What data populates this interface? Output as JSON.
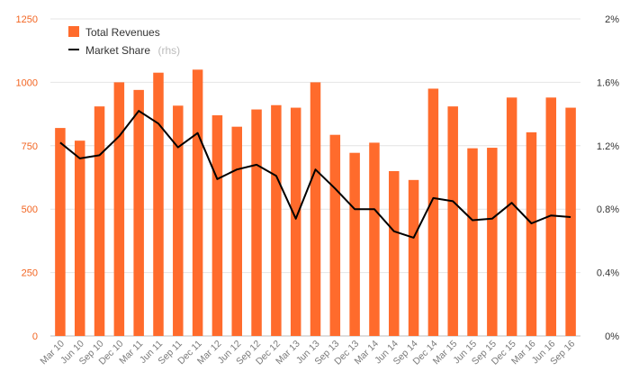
{
  "chart_data": {
    "type": "bar",
    "categories": [
      "Mar 10",
      "Jun 10",
      "Sep 10",
      "Dec 10",
      "Mar 11",
      "Jun 11",
      "Sep 11",
      "Dec 11",
      "Mar 12",
      "Jun 12",
      "Sep 12",
      "Dec 12",
      "Mar 13",
      "Jun 13",
      "Sep 13",
      "Dec 13",
      "Mar 14",
      "Jun 14",
      "Sep 14",
      "Dec 14",
      "Mar 15",
      "Jun 15",
      "Sep 15",
      "Dec 15",
      "Mar 16",
      "Jun 16",
      "Sep 16"
    ],
    "series": [
      {
        "name": "Total Revenues",
        "type": "bar",
        "axis": "left",
        "color": "#ff6b2c",
        "values": [
          820,
          770,
          905,
          1000,
          970,
          1038,
          908,
          1050,
          870,
          825,
          893,
          910,
          900,
          1000,
          793,
          722,
          762,
          650,
          615,
          975,
          905,
          740,
          742,
          940,
          803,
          940,
          900
        ]
      },
      {
        "name": "Market Share",
        "name_suffix": "(rhs)",
        "type": "line",
        "axis": "right",
        "color": "#000000",
        "values": [
          1.22,
          1.12,
          1.14,
          1.26,
          1.42,
          1.34,
          1.19,
          1.28,
          0.99,
          1.05,
          1.08,
          1.01,
          0.74,
          1.05,
          0.93,
          0.8,
          0.8,
          0.66,
          0.62,
          0.87,
          0.85,
          0.73,
          0.74,
          0.84,
          0.71,
          0.76,
          0.75
        ]
      }
    ],
    "y_left": {
      "min": 0,
      "max": 1250,
      "ticks": [
        0,
        250,
        500,
        750,
        1000,
        1250
      ],
      "tick_labels": [
        "0",
        "250",
        "500",
        "750",
        "1000",
        "1250"
      ],
      "color": "#f26522"
    },
    "y_right": {
      "min": 0,
      "max": 2,
      "ticks": [
        0,
        0.4,
        0.8,
        1.2,
        1.6,
        2.0
      ],
      "tick_labels": [
        "0%",
        "0.4%",
        "0.8%",
        "1.2%",
        "1.6%",
        "2%"
      ]
    },
    "grid": true,
    "legend_position": "top-left"
  }
}
